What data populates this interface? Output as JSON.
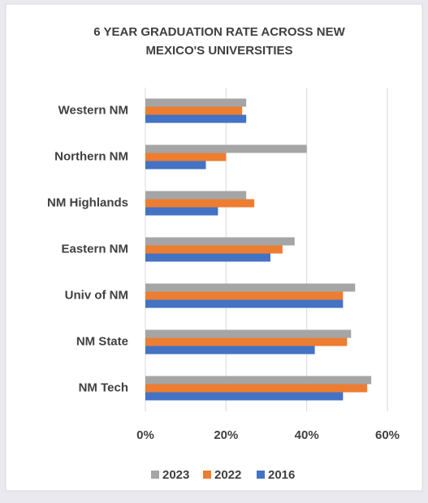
{
  "chart_data": {
    "type": "hbar",
    "title": [
      "6 YEAR GRADUATION RATE ACROSS NEW",
      "MEXICO'S UNIVERSITIES"
    ],
    "categories": [
      "Western NM",
      "Northern NM",
      "NM Highlands",
      "Eastern NM",
      "Univ of NM",
      "NM State",
      "NM Tech"
    ],
    "series": [
      {
        "name": "2023",
        "color": "#a5a5a5",
        "values": [
          25,
          40,
          25,
          37,
          52,
          51,
          56
        ]
      },
      {
        "name": "2022",
        "color": "#ed7d31",
        "values": [
          24,
          20,
          27,
          34,
          49,
          50,
          55
        ]
      },
      {
        "name": "2016",
        "color": "#4472c4",
        "values": [
          25,
          15,
          18,
          31,
          49,
          42,
          49
        ]
      }
    ],
    "xlim": [
      0,
      60
    ],
    "xticks": [
      {
        "value": 0,
        "label": "0%"
      },
      {
        "value": 20,
        "label": "20%"
      },
      {
        "value": 40,
        "label": "40%"
      },
      {
        "value": 60,
        "label": "60%"
      }
    ],
    "grid": true,
    "legend": "bottom"
  }
}
